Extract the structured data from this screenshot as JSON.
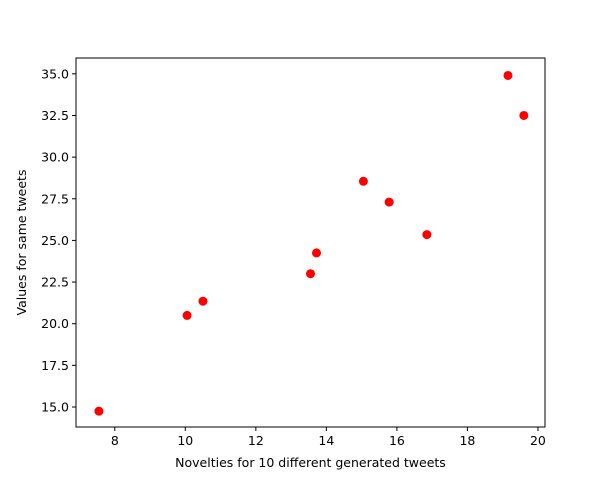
{
  "chart_data": {
    "type": "scatter",
    "title": "",
    "xlabel": "Novelties for 10 different generated tweets",
    "ylabel": "Values for same tweets",
    "xlim": [
      6.9,
      20.2
    ],
    "ylim": [
      13.8,
      35.95
    ],
    "xticks": [
      8,
      10,
      12,
      14,
      16,
      18,
      20
    ],
    "xtick_labels": [
      "8",
      "10",
      "12",
      "14",
      "16",
      "18",
      "20"
    ],
    "yticks": [
      15.0,
      17.5,
      20.0,
      22.5,
      25.0,
      27.5,
      30.0,
      32.5,
      35.0
    ],
    "ytick_labels": [
      "15.0",
      "17.5",
      "20.0",
      "22.5",
      "25.0",
      "27.5",
      "30.0",
      "32.5",
      "35.0"
    ],
    "grid": false,
    "marker_color": "#ff0000",
    "points": [
      {
        "x": 7.55,
        "y": 14.75
      },
      {
        "x": 10.05,
        "y": 20.5
      },
      {
        "x": 10.5,
        "y": 21.35
      },
      {
        "x": 13.55,
        "y": 23.0
      },
      {
        "x": 13.72,
        "y": 24.25
      },
      {
        "x": 15.05,
        "y": 28.55
      },
      {
        "x": 15.78,
        "y": 27.3
      },
      {
        "x": 16.85,
        "y": 25.35
      },
      {
        "x": 19.15,
        "y": 34.9
      },
      {
        "x": 19.6,
        "y": 32.5
      }
    ]
  }
}
